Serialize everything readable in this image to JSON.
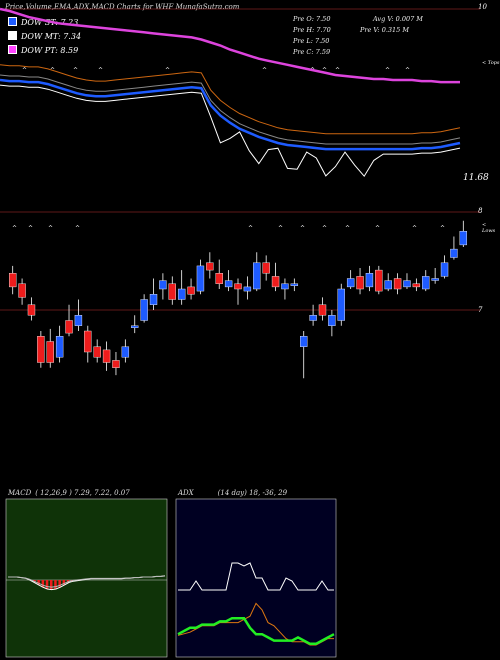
{
  "title": "Price,Volume,EMA,ADX,MACD Charts for WHF MunafaSutra.com",
  "dow": [
    {
      "label": "DOW ST: 7.23",
      "color": "#1e5bff"
    },
    {
      "label": "DOW MT: 7.34",
      "color": "#ffffff"
    },
    {
      "label": "DOW PT: 8.59",
      "color": "#ff44ff"
    }
  ],
  "prev": {
    "open": "Pre   O: 7.50",
    "high": "Pre   H: 7.70",
    "low": "Pre   L: 7.50",
    "close": "Pre   C: 7.59",
    "avg_vol": "Avg V: 0.007 M",
    "vol": "Pre   V: 0.315 M"
  },
  "axis": {
    "top_value": "10",
    "top_label": "< Tops",
    "ema_value": "11.68",
    "mid_value": "8",
    "bottom_label": "< Lows",
    "candle_value": "7"
  },
  "macd_header": {
    "name": "MACD",
    "params": "( 12,26,9 ) 7.29,  7.22,  0.07"
  },
  "adx_header": {
    "name": "ADX",
    "params": "(14  day) 18,  -36,  29"
  },
  "colors": {
    "bull": "#1e5bff",
    "bear": "#ee1c1c",
    "macd_bg": "#0f3308",
    "adx_bg": "#000022",
    "ema_long": "#dd44dd",
    "ema_mid": "#cc6611",
    "adx_green": "#22ee22",
    "adx_orange": "#dd7711"
  },
  "chart_data": {
    "type": "candlestick",
    "candles": [
      [
        7.35,
        7.22,
        7.42,
        7.15
      ],
      [
        7.25,
        7.12,
        7.3,
        7.05
      ],
      [
        7.05,
        6.95,
        7.12,
        6.9
      ],
      [
        6.75,
        6.5,
        6.8,
        6.45
      ],
      [
        6.7,
        6.5,
        6.82,
        6.45
      ],
      [
        6.55,
        6.75,
        6.85,
        6.5
      ],
      [
        6.9,
        6.78,
        7.05,
        6.75
      ],
      [
        6.85,
        6.95,
        7.1,
        6.8
      ],
      [
        6.8,
        6.6,
        6.85,
        6.5
      ],
      [
        6.65,
        6.55,
        6.72,
        6.5
      ],
      [
        6.62,
        6.5,
        6.7,
        6.42
      ],
      [
        6.52,
        6.45,
        6.6,
        6.38
      ],
      [
        6.55,
        6.65,
        6.72,
        6.5
      ],
      [
        6.85,
        6.85,
        6.95,
        6.78
      ],
      [
        6.9,
        7.1,
        7.15,
        6.88
      ],
      [
        7.05,
        7.15,
        7.3,
        7.0
      ],
      [
        7.2,
        7.28,
        7.35,
        7.1
      ],
      [
        7.25,
        7.1,
        7.32,
        7.05
      ],
      [
        7.1,
        7.2,
        7.38,
        7.05
      ],
      [
        7.22,
        7.15,
        7.3,
        7.1
      ],
      [
        7.18,
        7.42,
        7.48,
        7.15
      ],
      [
        7.45,
        7.38,
        7.55,
        7.3
      ],
      [
        7.35,
        7.25,
        7.48,
        7.2
      ],
      [
        7.22,
        7.28,
        7.38,
        7.18
      ],
      [
        7.25,
        7.2,
        7.3,
        7.05
      ],
      [
        7.18,
        7.22,
        7.32,
        7.1
      ],
      [
        7.2,
        7.45,
        7.55,
        7.18
      ],
      [
        7.45,
        7.35,
        7.52,
        7.28
      ],
      [
        7.32,
        7.22,
        7.45,
        7.18
      ],
      [
        7.2,
        7.25,
        7.3,
        7.1
      ],
      [
        7.25,
        7.25,
        7.3,
        7.18
      ],
      [
        6.65,
        6.75,
        6.8,
        6.35
      ],
      [
        6.9,
        6.95,
        7.05,
        6.85
      ],
      [
        7.05,
        6.95,
        7.12,
        6.9
      ],
      [
        6.85,
        6.95,
        7.0,
        6.75
      ],
      [
        6.9,
        7.2,
        7.25,
        6.85
      ],
      [
        7.22,
        7.3,
        7.38,
        7.2
      ],
      [
        7.32,
        7.2,
        7.4,
        7.15
      ],
      [
        7.22,
        7.35,
        7.42,
        7.18
      ],
      [
        7.38,
        7.18,
        7.42,
        7.15
      ],
      [
        7.2,
        7.28,
        7.35,
        7.18
      ],
      [
        7.3,
        7.2,
        7.35,
        7.15
      ],
      [
        7.22,
        7.28,
        7.35,
        7.2
      ],
      [
        7.25,
        7.22,
        7.3,
        7.18
      ],
      [
        7.2,
        7.32,
        7.38,
        7.18
      ],
      [
        7.3,
        7.3,
        7.4,
        7.25
      ],
      [
        7.32,
        7.45,
        7.52,
        7.3
      ],
      [
        7.5,
        7.58,
        7.7,
        7.48
      ],
      [
        7.62,
        7.75,
        7.85,
        7.6
      ]
    ],
    "ema_long": [
      10.0,
      9.98,
      9.95,
      9.92,
      9.9,
      9.88,
      9.86,
      9.85,
      9.84,
      9.83,
      9.82,
      9.81,
      9.8,
      9.79,
      9.78,
      9.77,
      9.76,
      9.75,
      9.74,
      9.73,
      9.72,
      9.7,
      9.67,
      9.64,
      9.6,
      9.57,
      9.54,
      9.51,
      9.49,
      9.47,
      9.45,
      9.43,
      9.41,
      9.39,
      9.37,
      9.35,
      9.34,
      9.33,
      9.32,
      9.31,
      9.31,
      9.3,
      9.3,
      9.3,
      9.29,
      9.29,
      9.28,
      9.28,
      9.28
    ],
    "ema_short": [
      9.3,
      9.29,
      9.29,
      9.28,
      9.28,
      9.26,
      9.23,
      9.2,
      9.17,
      9.15,
      9.14,
      9.14,
      9.15,
      9.16,
      9.17,
      9.18,
      9.19,
      9.2,
      9.21,
      9.22,
      9.23,
      9.22,
      9.05,
      8.95,
      8.88,
      8.82,
      8.78,
      8.74,
      8.71,
      8.68,
      8.66,
      8.65,
      8.64,
      8.63,
      8.62,
      8.62,
      8.62,
      8.62,
      8.62,
      8.62,
      8.62,
      8.62,
      8.62,
      8.62,
      8.63,
      8.63,
      8.64,
      8.66,
      8.68
    ],
    "macd": [
      0.05,
      0.05,
      0.05,
      0.04,
      0.03,
      0.0,
      -0.04,
      -0.08,
      -0.12,
      -0.15,
      -0.16,
      -0.15,
      -0.12,
      -0.08,
      -0.04,
      -0.02,
      -0.01,
      0.0,
      0.01,
      0.02,
      0.02,
      0.02,
      0.02,
      0.02,
      0.02,
      0.02,
      0.02,
      0.03,
      0.03,
      0.04,
      0.04,
      0.05,
      0.05,
      0.05,
      0.06,
      0.06,
      0.07
    ],
    "adx_top": [
      18,
      18,
      18,
      24,
      18,
      18,
      18,
      18,
      18,
      36,
      36,
      34,
      36,
      26,
      26,
      18,
      18,
      18,
      26,
      24,
      18,
      18,
      18,
      18,
      24,
      18,
      18
    ],
    "adx_di": [
      18,
      20,
      22,
      22,
      24,
      24,
      24,
      26,
      26,
      28,
      28,
      28,
      22,
      18,
      18,
      16,
      14,
      14,
      14,
      14,
      16,
      14,
      12,
      12,
      14,
      16,
      18
    ],
    "adx_orange": [
      16,
      17,
      18,
      20,
      22,
      22,
      22,
      24,
      24,
      24,
      24,
      26,
      28,
      36,
      32,
      24,
      22,
      18,
      14,
      12,
      12,
      12,
      10,
      10,
      12,
      14,
      14
    ]
  }
}
